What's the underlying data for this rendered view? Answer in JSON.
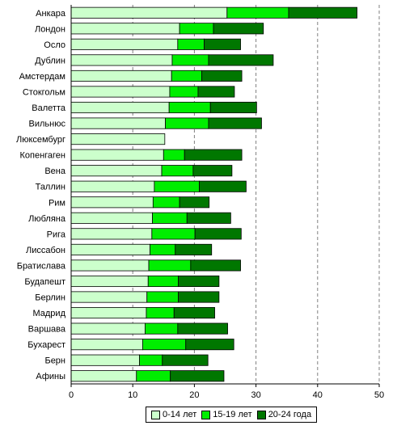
{
  "chart_data": {
    "type": "bar",
    "orientation": "horizontal",
    "stacked": true,
    "categories": [
      "Анкара",
      "Лондон",
      "Осло",
      "Дублин",
      "Амстердам",
      "Стокгольм",
      "Валетта",
      "Вильнюс",
      "Люксембург",
      "Копенгаген",
      "Вена",
      "Таллин",
      "Рим",
      "Любляна",
      "Рига",
      "Лиссабон",
      "Братислава",
      "Будапешт",
      "Берлин",
      "Мадрид",
      "Варшава",
      "Бухарест",
      "Берн",
      "Афины"
    ],
    "series": [
      {
        "name": "0-14 лет",
        "color": "#ccffcc",
        "values": [
          25.3,
          17.6,
          17.3,
          16.4,
          16.3,
          16.0,
          15.9,
          15.3,
          15.2,
          15.0,
          14.7,
          13.5,
          13.3,
          13.2,
          13.1,
          12.8,
          12.6,
          12.5,
          12.3,
          12.2,
          12.0,
          11.6,
          11.1,
          10.6
        ]
      },
      {
        "name": "15-19 лет",
        "color": "#00ee00",
        "values": [
          10.0,
          5.5,
          4.3,
          5.9,
          4.9,
          4.6,
          6.7,
          7.0,
          0,
          3.4,
          5.1,
          7.3,
          4.3,
          5.6,
          7.0,
          4.1,
          6.8,
          4.9,
          5.1,
          4.5,
          5.3,
          7.0,
          3.7,
          5.5
        ]
      },
      {
        "name": "20-24 года",
        "color": "#007700",
        "values": [
          11.1,
          8.1,
          5.9,
          10.5,
          6.5,
          5.9,
          7.5,
          8.6,
          0,
          9.3,
          6.3,
          7.6,
          4.8,
          7.1,
          7.5,
          5.9,
          8.1,
          6.6,
          6.6,
          6.6,
          8.1,
          7.8,
          7.4,
          8.7
        ]
      }
    ],
    "xlim": [
      0,
      50
    ],
    "xticks": [
      0,
      10,
      20,
      30,
      40,
      50
    ],
    "grid": true,
    "legend": "bottom"
  }
}
